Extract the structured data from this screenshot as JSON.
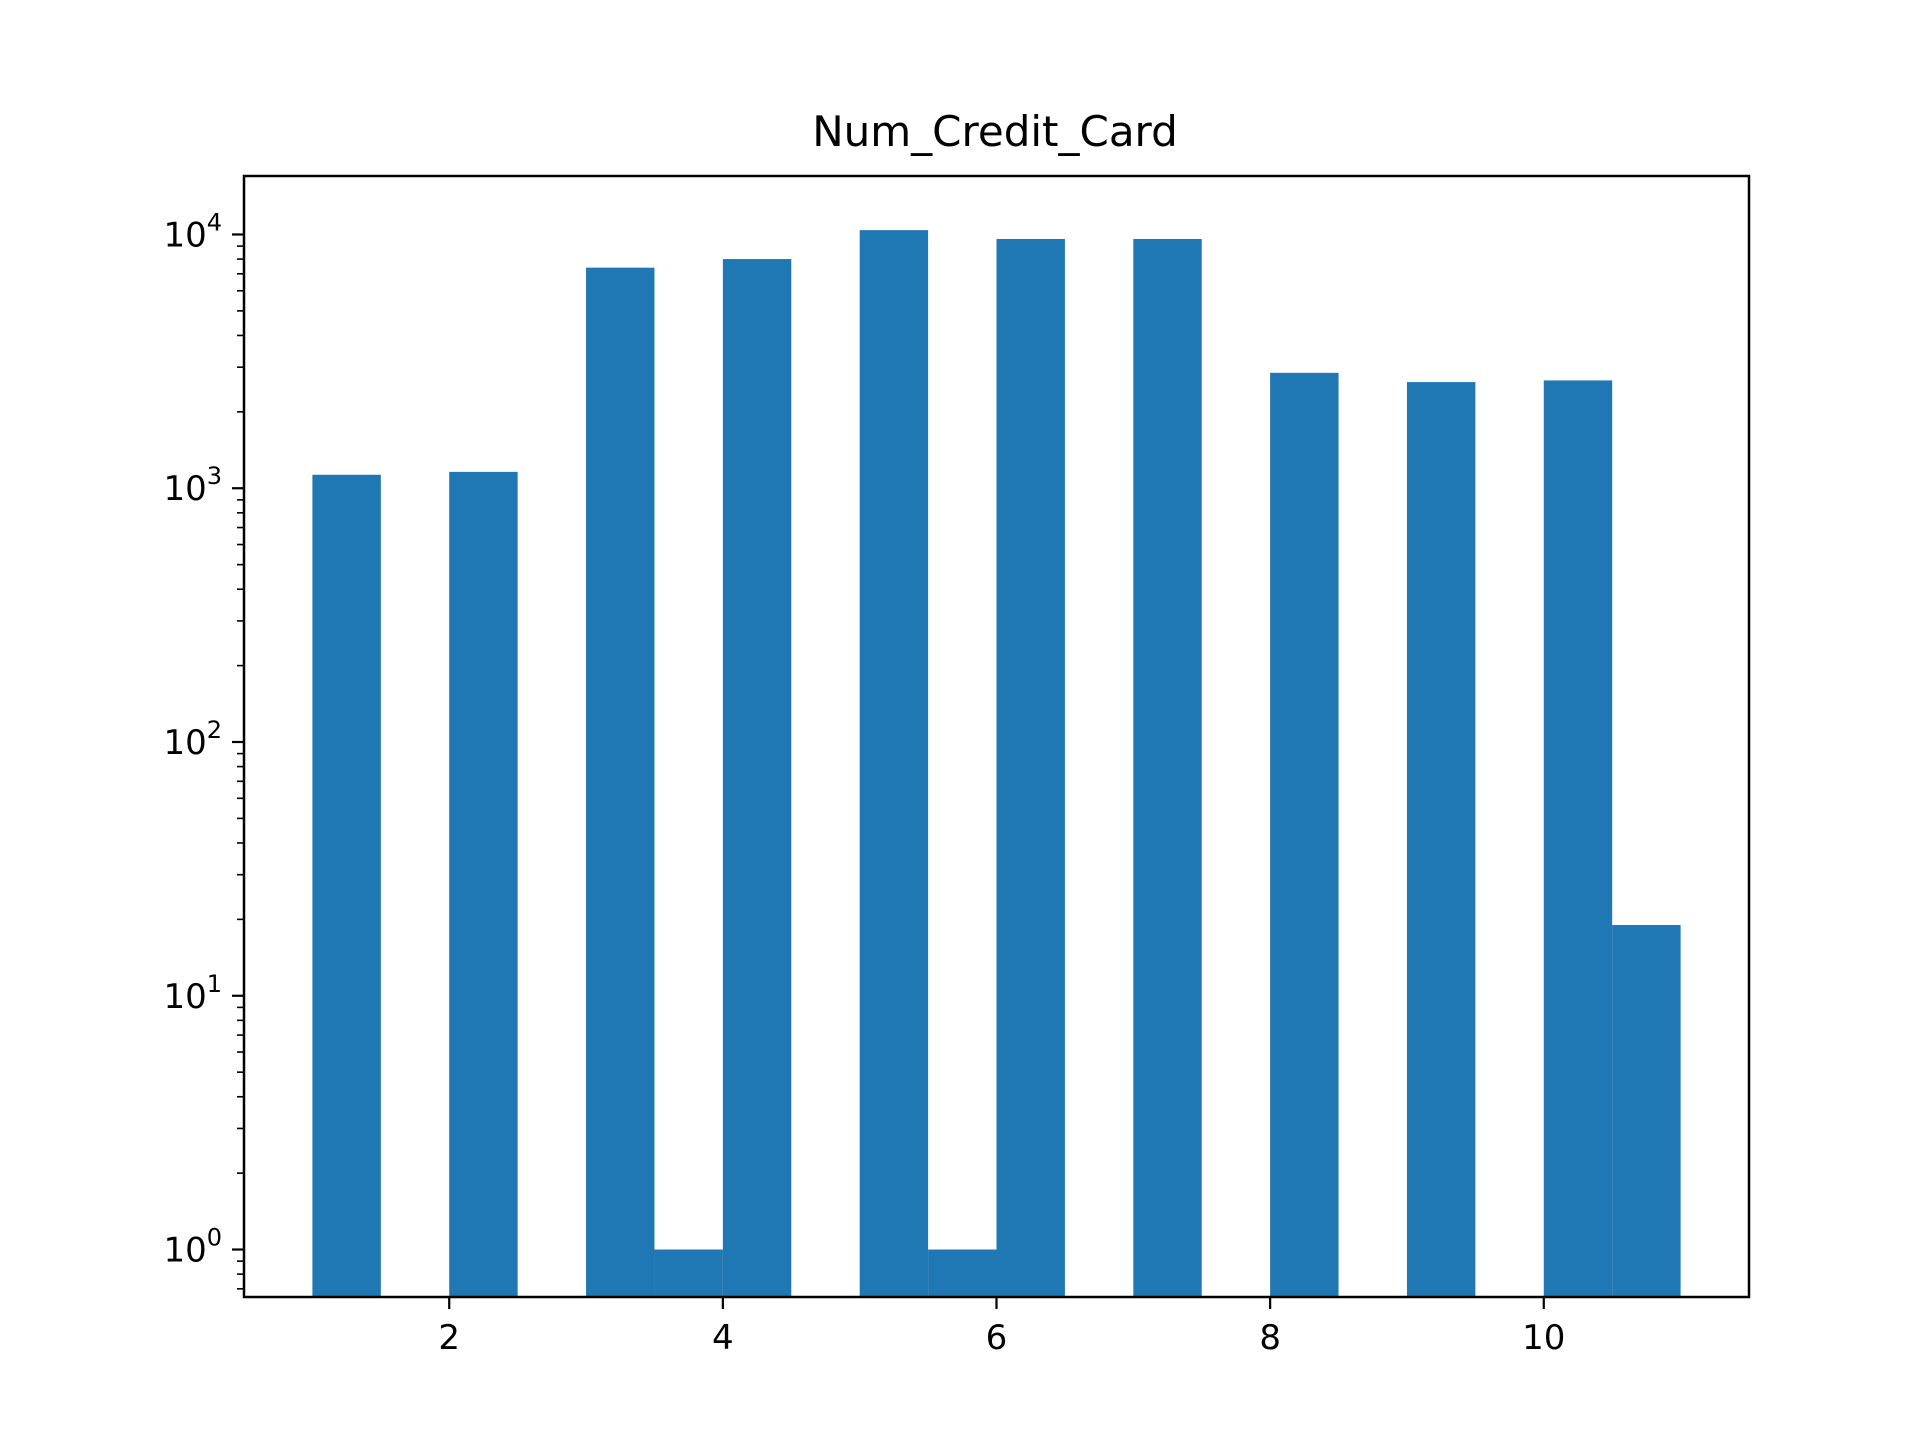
{
  "chart_data": {
    "type": "bar",
    "subtype": "histogram",
    "title": "Num_Credit_Card",
    "xlabel": "",
    "ylabel": "",
    "yscale": "log",
    "xlim": [
      0.5,
      11.5
    ],
    "ylim": [
      0.65,
      17000
    ],
    "xticks": [
      2,
      4,
      6,
      8,
      10
    ],
    "xtick_labels": [
      "2",
      "4",
      "6",
      "8",
      "10"
    ],
    "yticks": [
      1,
      10,
      100,
      1000,
      10000
    ],
    "ytick_labels": [
      {
        "base": "10",
        "exp": "0"
      },
      {
        "base": "10",
        "exp": "1"
      },
      {
        "base": "10",
        "exp": "2"
      },
      {
        "base": "10",
        "exp": "3"
      },
      {
        "base": "10",
        "exp": "4"
      }
    ],
    "bin_width": 0.5,
    "bins": [
      {
        "x0": 1.0,
        "x1": 1.5,
        "count": 1130
      },
      {
        "x0": 2.0,
        "x1": 2.5,
        "count": 1160
      },
      {
        "x0": 3.0,
        "x1": 3.5,
        "count": 7400
      },
      {
        "x0": 3.5,
        "x1": 4.0,
        "count": 1
      },
      {
        "x0": 4.0,
        "x1": 4.5,
        "count": 8000
      },
      {
        "x0": 5.0,
        "x1": 5.5,
        "count": 10400
      },
      {
        "x0": 5.5,
        "x1": 6.0,
        "count": 1
      },
      {
        "x0": 6.0,
        "x1": 6.5,
        "count": 9600
      },
      {
        "x0": 7.0,
        "x1": 7.5,
        "count": 9600
      },
      {
        "x0": 8.0,
        "x1": 8.5,
        "count": 2850
      },
      {
        "x0": 9.0,
        "x1": 9.5,
        "count": 2620
      },
      {
        "x0": 10.0,
        "x1": 10.5,
        "count": 2660
      },
      {
        "x0": 10.5,
        "x1": 11.0,
        "count": 19
      }
    ],
    "bar_color": "#1f77b4",
    "grid": false,
    "legend": "none"
  }
}
